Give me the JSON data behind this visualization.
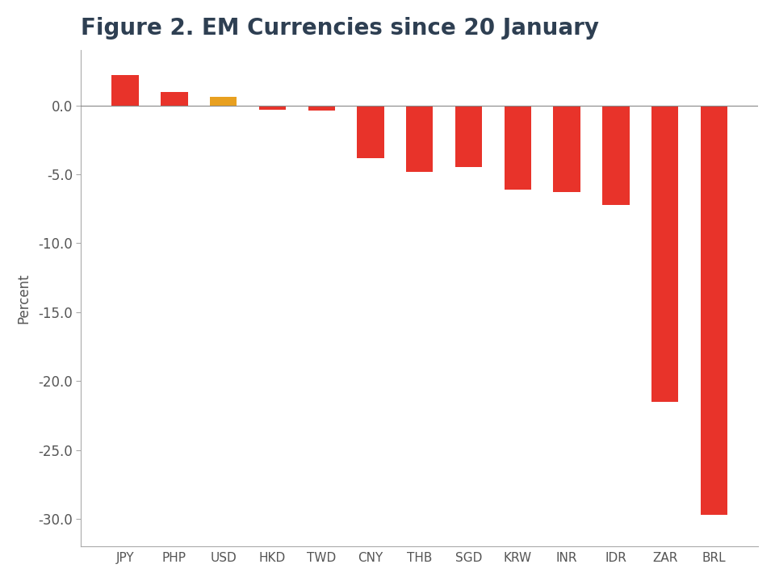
{
  "categories": [
    "JPY",
    "PHP",
    "USD",
    "HKD",
    "TWD",
    "CNY",
    "THB",
    "SGD",
    "KRW",
    "INR",
    "IDR",
    "ZAR",
    "BRL"
  ],
  "values": [
    2.2,
    1.0,
    0.6,
    -0.3,
    -0.4,
    -3.8,
    -4.8,
    -4.5,
    -6.1,
    -6.3,
    -7.2,
    -21.5,
    -29.7
  ],
  "bar_colors": [
    "#e8332a",
    "#e8332a",
    "#e8a020",
    "#e8332a",
    "#e8332a",
    "#e8332a",
    "#e8332a",
    "#e8332a",
    "#e8332a",
    "#e8332a",
    "#e8332a",
    "#e8332a",
    "#e8332a"
  ],
  "title": "Figure 2. EM Currencies since 20 January",
  "ylabel": "Percent",
  "ylim": [
    -32,
    4
  ],
  "yticks": [
    0.0,
    -5.0,
    -10.0,
    -15.0,
    -20.0,
    -25.0,
    -30.0
  ],
  "ytick_labels": [
    "0.0",
    "-5.0",
    "-10.0",
    "-15.0",
    "-20.0",
    "-25.0",
    "-30.0"
  ],
  "background_color": "#ffffff",
  "title_color": "#2e3f52",
  "title_fontsize": 20,
  "bar_width": 0.55,
  "ylabel_fontsize": 12,
  "tick_color": "#555555",
  "spine_color": "#aaaaaa"
}
